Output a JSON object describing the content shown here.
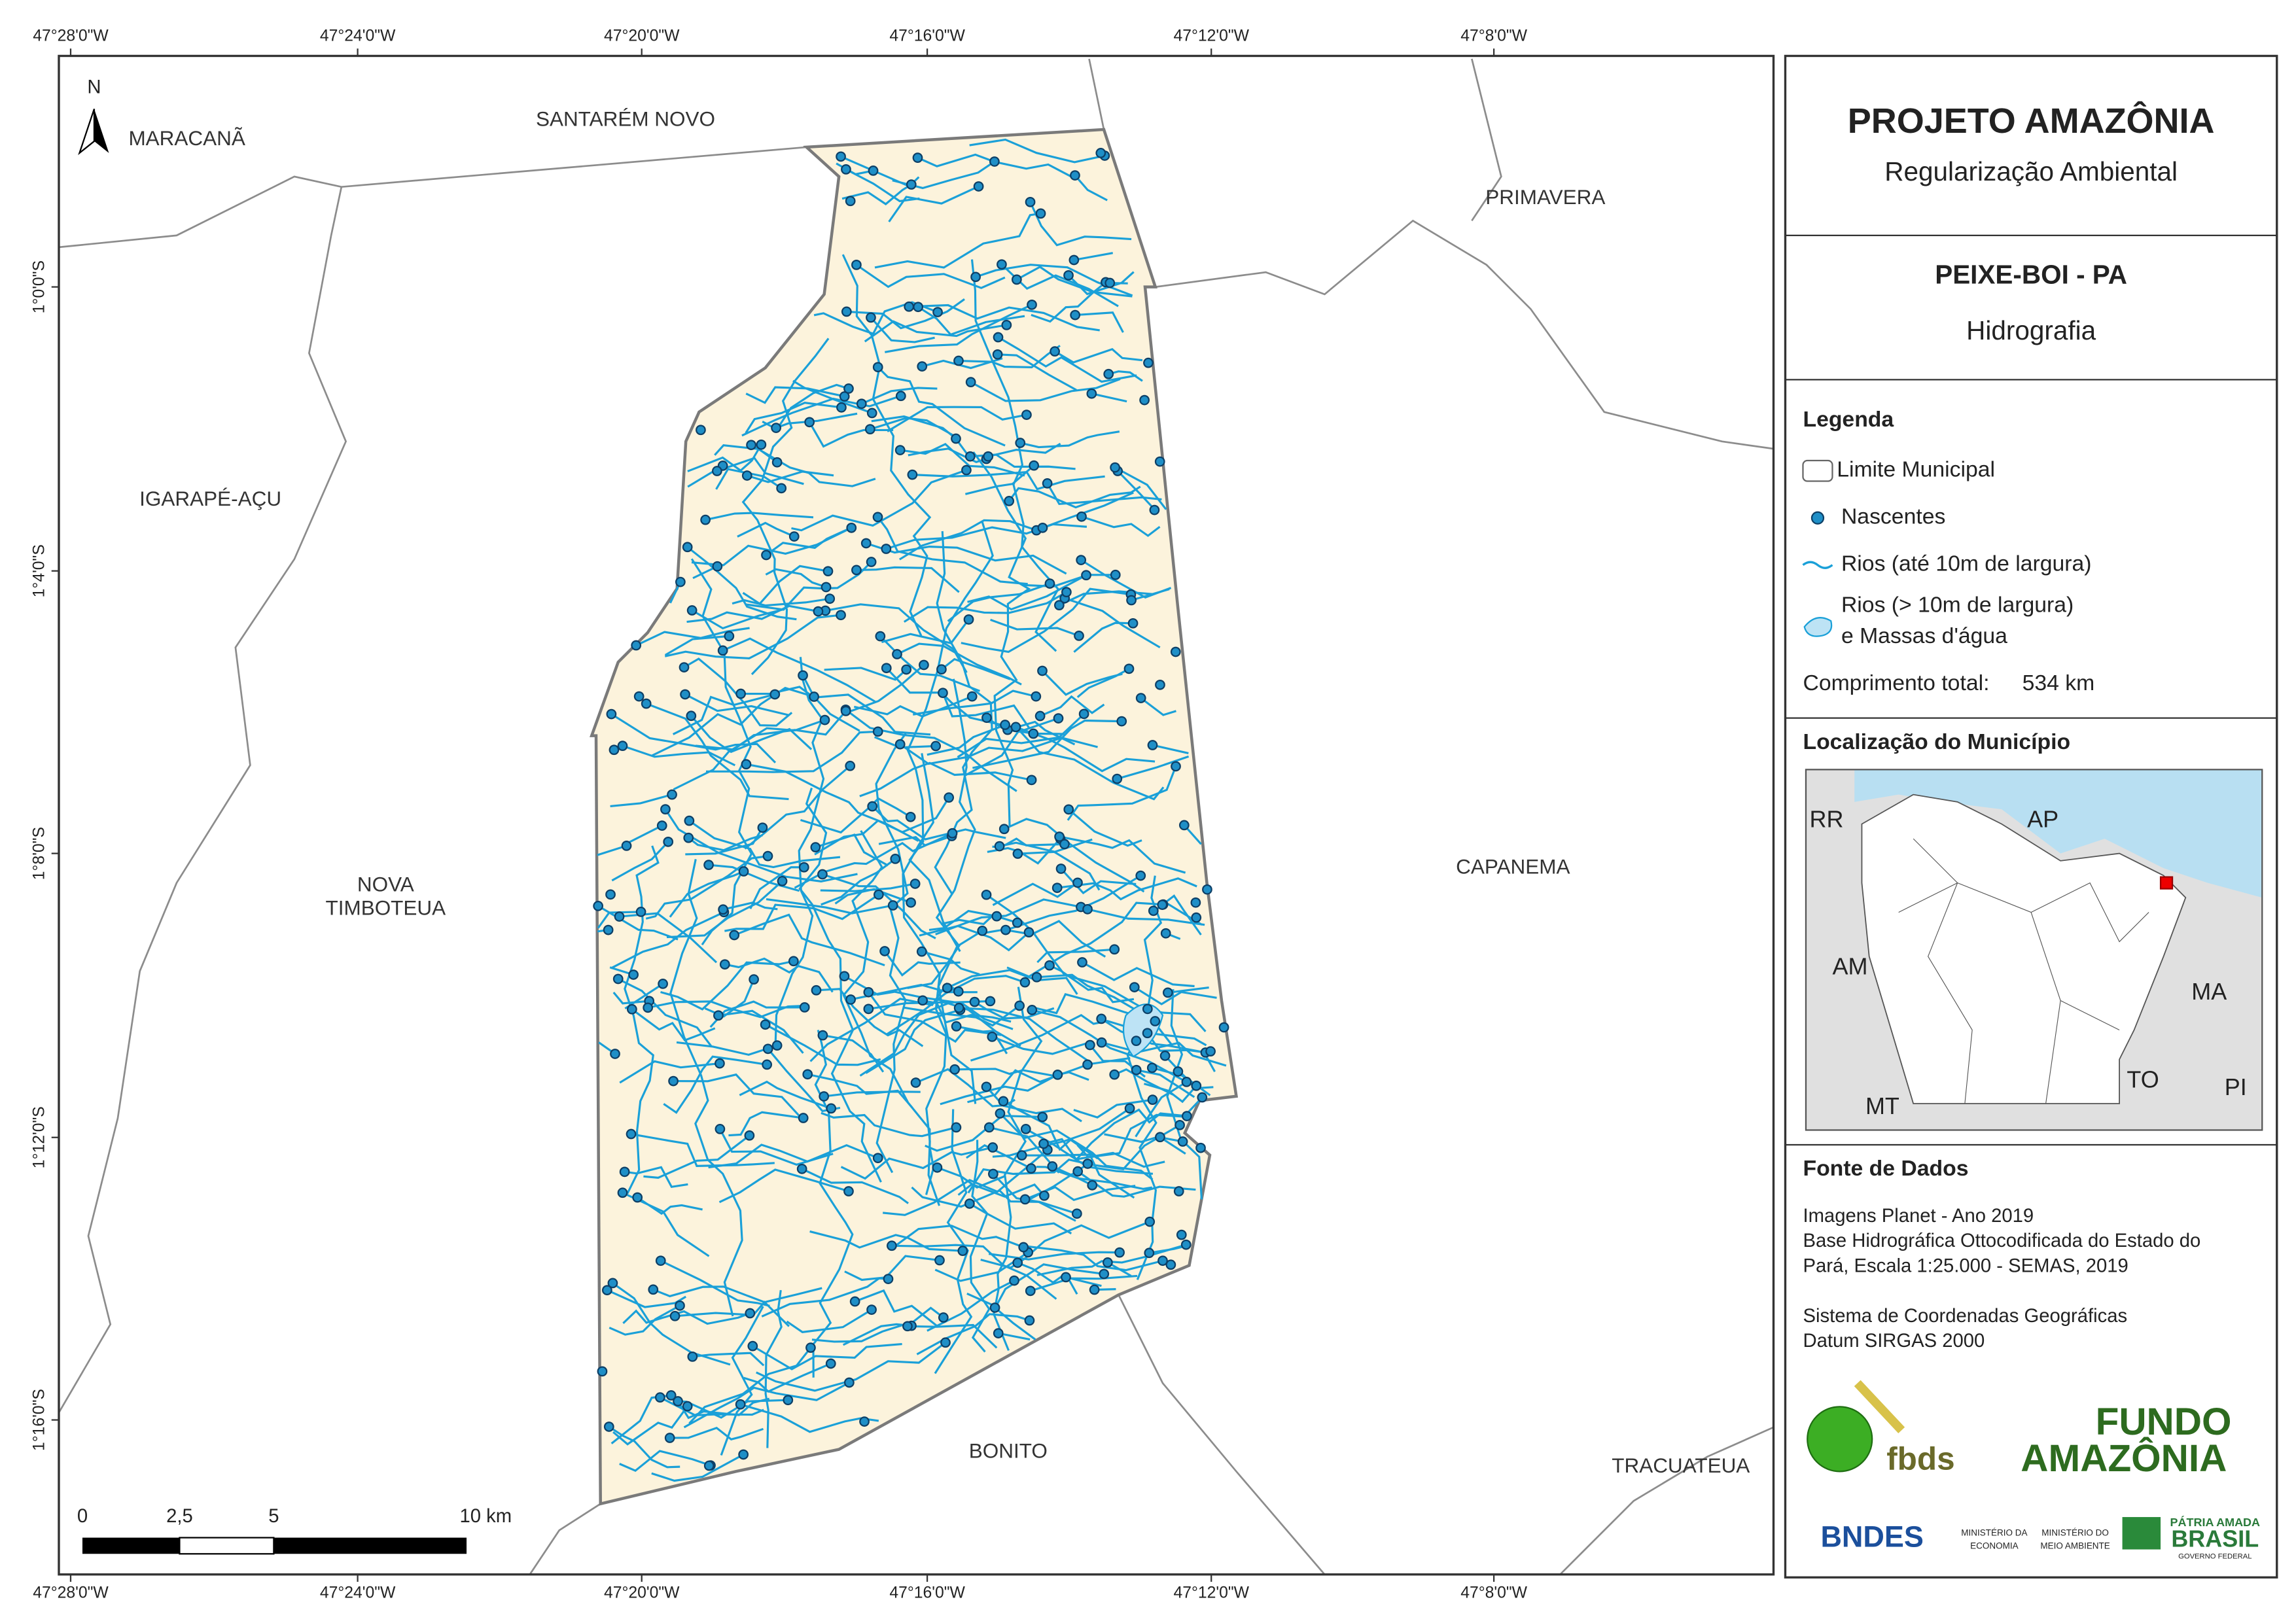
{
  "map": {
    "top_coords": [
      "47°28'0\"W",
      "47°24'0\"W",
      "47°20'0\"W",
      "47°16'0\"W",
      "47°12'0\"W",
      "47°8'0\"W"
    ],
    "bottom_coords": [
      "47°28'0\"W",
      "47°24'0\"W",
      "47°20'0\"W",
      "47°16'0\"W",
      "47°12'0\"W",
      "47°8'0\"W"
    ],
    "left_coords": [
      "1°0'0\"S",
      "1°4'0\"S",
      "1°8'0\"S",
      "1°12'0\"S",
      "1°16'0\"S"
    ],
    "north": "N",
    "places": [
      {
        "lines": [
          "MARACANÃ"
        ]
      },
      {
        "lines": [
          "SANTARÉM NOVO"
        ]
      },
      {
        "lines": [
          "PRIMAVERA"
        ]
      },
      {
        "lines": [
          "IGARAPÉ-AÇU"
        ]
      },
      {
        "lines": [
          "NOVA",
          "TIMBOTEUA"
        ]
      },
      {
        "lines": [
          "CAPANEMA"
        ]
      },
      {
        "lines": [
          "BONITO"
        ]
      },
      {
        "lines": [
          "TRACUATEUA"
        ]
      }
    ],
    "scale_labels": [
      "0",
      "2,5",
      "5",
      "10 km"
    ]
  },
  "panel": {
    "title": "PROJETO AMAZÔNIA",
    "subtitle": "Regularização Ambiental",
    "municipality": "PEIXE-BOI - PA",
    "theme": "Hidrografia",
    "legend_title": "Legenda",
    "legend": [
      {
        "lines": [
          "Limite Municipal"
        ]
      },
      {
        "lines": [
          "Nascentes"
        ]
      },
      {
        "lines": [
          "Rios (até 10m de largura)"
        ]
      },
      {
        "lines": [
          "Rios (> 10m de largura)",
          "e Massas d'água"
        ]
      }
    ],
    "total_label": "Comprimento total:",
    "total_value": "534 km",
    "location_title": "Localização do Município",
    "inset_labels": [
      "RR",
      "AP",
      "AM",
      "MA",
      "TO",
      "MT",
      "PI"
    ],
    "source_title": "Fonte de Dados",
    "source_lines": [
      "Imagens Planet - Ano 2019",
      "Base Hidrográfica Ottocodificada do Estado do",
      "Pará, Escala 1:25.000 - SEMAS, 2019",
      "",
      "Sistema de Coordenadas Geográficas",
      "Datum SIRGAS 2000"
    ],
    "logos": {
      "fbds": "fbds",
      "fundo": [
        "FUNDO",
        "AMAZÔNIA"
      ],
      "bndes": "BNDES",
      "min_eco": [
        "MINISTÉRIO DA",
        "ECONOMIA"
      ],
      "min_ma": [
        "MINISTÉRIO DO",
        "MEIO AMBIENTE"
      ],
      "brasil": [
        "PÁTRIA AMADA",
        "BRASIL",
        "GOVERNO FEDERAL"
      ]
    }
  }
}
